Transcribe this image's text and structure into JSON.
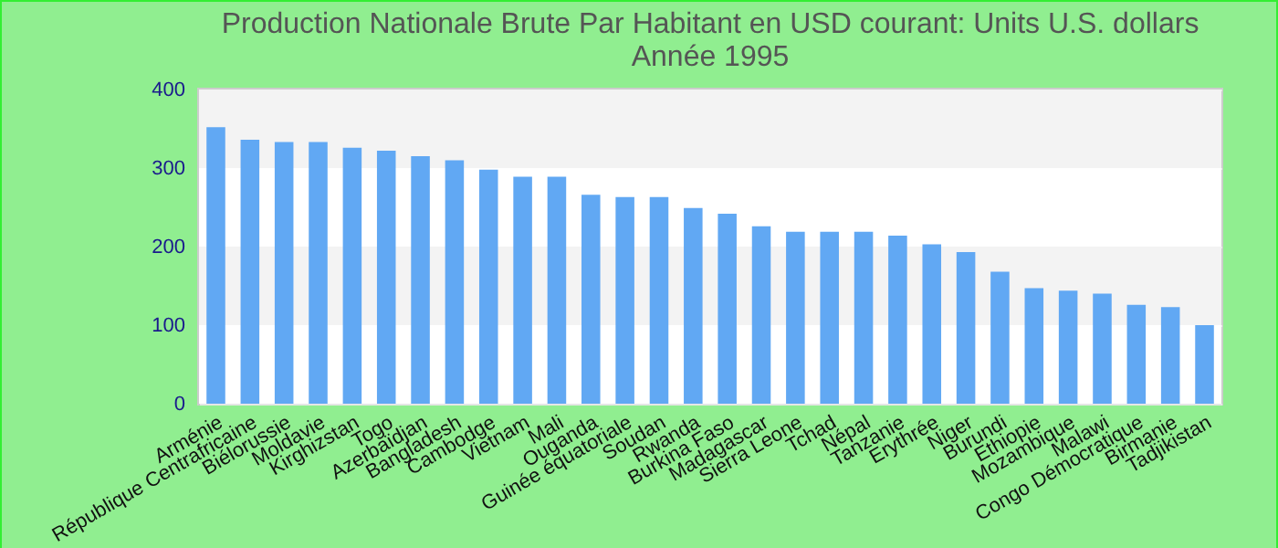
{
  "chart_data": {
    "type": "bar",
    "title": "Production Nationale Brute Par Habitant en USD courant: Units U.S. dollars",
    "subtitle": "Année 1995",
    "categories": [
      "Arménie",
      "République Centrafricaine",
      "Biélorussie",
      "Moldavie",
      "Kirghizstan",
      "Togo",
      "Azerbaïdjan",
      "Bangladesh",
      "Cambodge",
      "Vietnam",
      "Mali",
      "Ouganda",
      "Guinée équatoriale",
      "Soudan",
      "Rwanda",
      "Burkina Faso",
      "Madagascar",
      "Sierra Leone",
      "Tchad",
      "Népal",
      "Tanzanie",
      "Erythrée",
      "Niger",
      "Burundi",
      "Ethiopie",
      "Mozambique",
      "Malawi",
      "Congo Démocratique",
      "Birmanie",
      "Tadjikistan"
    ],
    "values": [
      352,
      336,
      333,
      333,
      326,
      322,
      315,
      310,
      298,
      289,
      289,
      266,
      263,
      263,
      249,
      242,
      226,
      219,
      219,
      219,
      214,
      203,
      193,
      168,
      147,
      144,
      140,
      126,
      123,
      100
    ],
    "color": "#61a8f3",
    "ylim": [
      0,
      400
    ],
    "yticks": [
      0,
      100,
      200,
      300,
      400
    ],
    "grid": "y"
  }
}
